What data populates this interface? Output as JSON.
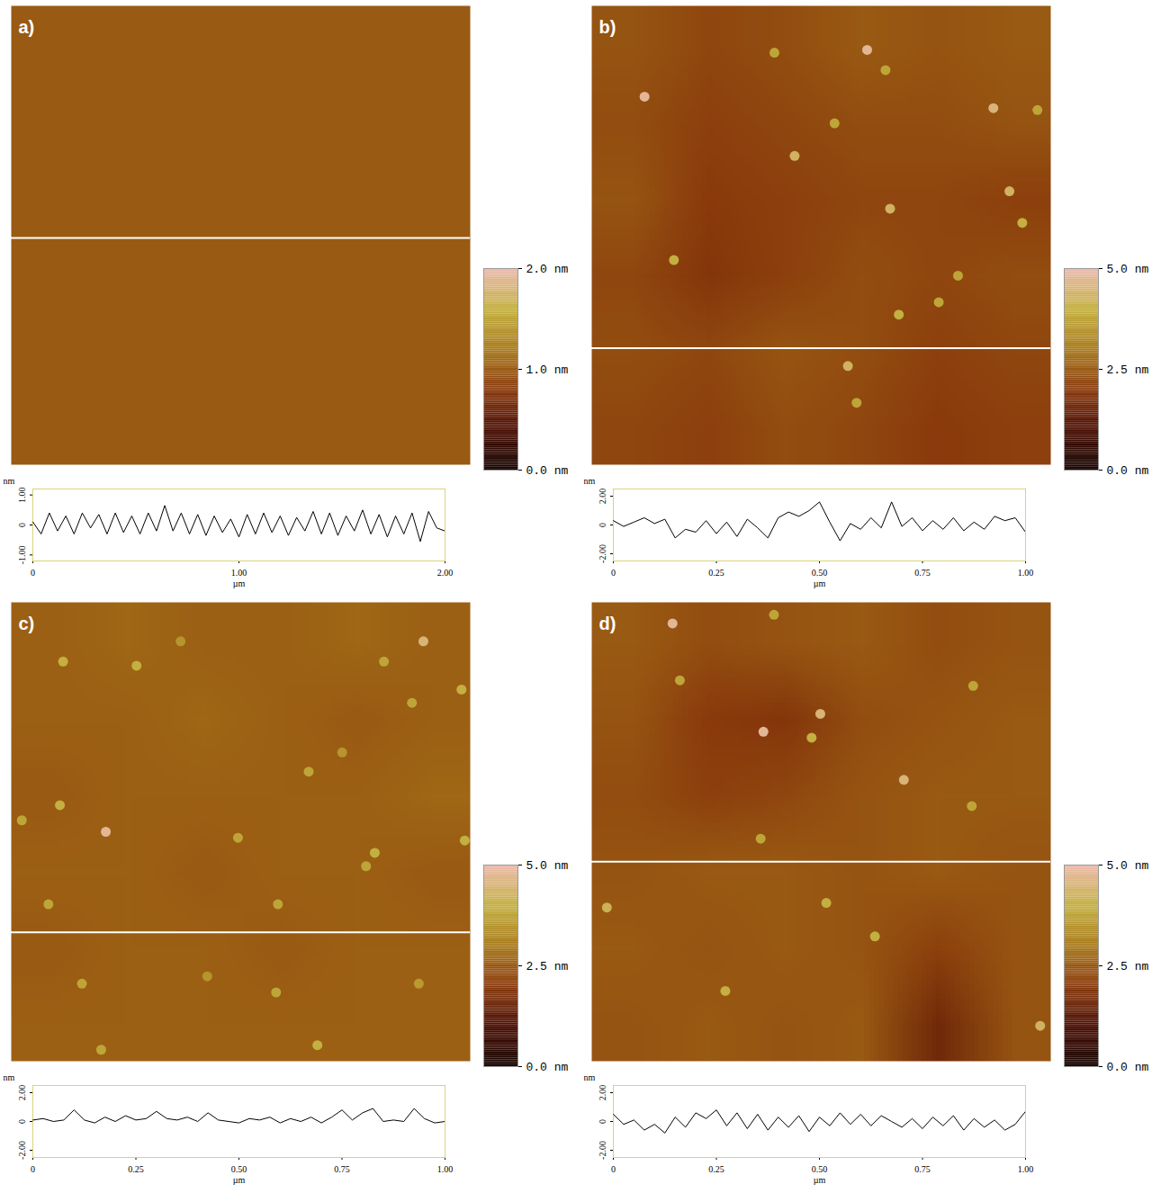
{
  "chart_data": [
    {
      "title": "a)",
      "image": {
        "type": "heatmap",
        "tick_labels": false,
        "xlim": [
          0,
          2
        ],
        "ylim": [
          0,
          2
        ],
        "cells": [
          [
            1.0,
            1.0,
            1.0,
            1.0,
            1.0,
            1.0
          ],
          [
            1.0,
            1.0,
            1.0,
            1.0,
            1.0,
            1.0
          ],
          [
            1.0,
            1.0,
            1.0,
            1.0,
            1.0,
            1.0
          ],
          [
            1.0,
            1.0,
            1.0,
            1.0,
            1.0,
            1.0
          ],
          [
            1.0,
            1.0,
            1.0,
            1.0,
            1.0,
            1.0
          ],
          [
            1.0,
            1.0,
            1.0,
            1.0,
            1.0,
            1.0
          ]
        ],
        "profile_y": 1.012
      },
      "colorbar": {
        "range": [
          0,
          2
        ],
        "ticks": [
          {
            "value": 0,
            "label": "0.0 nm"
          },
          {
            "value": 1,
            "label": "1.0 nm"
          },
          {
            "value": 2,
            "label": "2.0 nm"
          }
        ]
      },
      "profile": {
        "type": "line",
        "color": "#000000",
        "x_label": "µm",
        "y_label": "nm",
        "xlim": [
          0,
          2
        ],
        "ylim": [
          -1.2,
          1.2
        ],
        "xticks": [
          0,
          {
            "value": 1,
            "label": "1.00"
          },
          {
            "value": 2,
            "label": "2.00"
          }
        ],
        "yticks": [
          {
            "value": -1,
            "label": "-1.00"
          },
          0,
          {
            "value": 1,
            "label": "1.00"
          }
        ],
        "x": [
          0,
          0.04,
          0.08,
          0.12,
          0.16,
          0.2,
          0.24,
          0.28,
          0.32,
          0.36,
          0.4,
          0.44,
          0.48,
          0.52,
          0.56,
          0.6,
          0.64,
          0.68,
          0.72,
          0.76,
          0.8,
          0.84,
          0.88,
          0.92,
          0.96,
          1,
          1.04,
          1.08,
          1.12,
          1.16,
          1.2,
          1.24,
          1.28,
          1.32,
          1.36,
          1.4,
          1.44,
          1.48,
          1.52,
          1.56,
          1.6,
          1.64,
          1.68,
          1.72,
          1.76,
          1.8,
          1.84,
          1.88,
          1.92,
          1.96,
          2
        ],
        "values": [
          0.1,
          -0.3,
          0.4,
          -0.2,
          0.3,
          -0.3,
          0.4,
          -0.1,
          0.35,
          -0.3,
          0.4,
          -0.25,
          0.3,
          -0.3,
          0.4,
          -0.2,
          0.65,
          -0.2,
          0.4,
          -0.3,
          0.35,
          -0.35,
          0.3,
          -0.25,
          0.2,
          -0.4,
          0.35,
          -0.3,
          0.4,
          -0.25,
          0.3,
          -0.35,
          0.25,
          -0.2,
          0.45,
          -0.3,
          0.4,
          -0.35,
          0.3,
          -0.2,
          0.5,
          -0.3,
          0.35,
          -0.4,
          0.3,
          -0.3,
          0.4,
          -0.55,
          0.45,
          -0.1,
          -0.2
        ]
      }
    },
    {
      "title": "b)",
      "image": {
        "type": "heatmap",
        "tick_labels": false,
        "xlim": [
          0,
          1
        ],
        "ylim": [
          0,
          1
        ],
        "cells": [
          [
            2.4,
            2.2,
            2.3,
            2.5,
            2.4,
            2.5
          ],
          [
            2.3,
            2.1,
            2.2,
            2.3,
            2.3,
            2.4
          ],
          [
            2.4,
            2.0,
            2.1,
            2.2,
            2.2,
            2.1
          ],
          [
            2.2,
            1.9,
            2.1,
            2.3,
            2.2,
            2.3
          ],
          [
            2.3,
            2.2,
            2.4,
            2.3,
            2.1,
            2.2
          ],
          [
            2.2,
            2.1,
            2.3,
            2.2,
            2.0,
            2.1
          ]
        ],
        "particles": {
          "x": [
            0.115,
            0.6,
            0.875,
            0.442,
            0.65,
            0.91,
            0.938,
            0.179,
            0.669,
            0.756,
            0.558,
            0.798,
            0.971,
            0.398,
            0.64,
            0.529,
            0.577
          ],
          "y": [
            0.198,
            0.096,
            0.223,
            0.327,
            0.442,
            0.404,
            0.473,
            0.554,
            0.673,
            0.646,
            0.785,
            0.588,
            0.227,
            0.102,
            0.14,
            0.256,
            0.865
          ],
          "values": [
            4.8,
            4.8,
            4.5,
            4.3,
            4.3,
            4.3,
            4.0,
            4.0,
            4.0,
            3.8,
            4.3,
            3.8,
            3.8,
            3.8,
            3.8,
            3.8,
            3.8
          ]
        },
        "profile_y": 0.746
      },
      "colorbar": {
        "range": [
          0,
          5
        ],
        "ticks": [
          {
            "value": 0,
            "label": "0.0 nm"
          },
          {
            "value": 2.5,
            "label": "2.5 nm"
          },
          {
            "value": 5,
            "label": "5.0 nm"
          }
        ]
      },
      "profile": {
        "type": "line",
        "color": "#000000",
        "x_label": "µm",
        "y_label": "nm",
        "xlim": [
          0,
          1
        ],
        "ylim": [
          -2.5,
          2.5
        ],
        "xticks": [
          0,
          0.25,
          {
            "value": 0.5,
            "label": "0.50"
          },
          0.75,
          {
            "value": 1,
            "label": "1.00"
          }
        ],
        "yticks": [
          {
            "value": -2,
            "label": "-2.00"
          },
          0,
          {
            "value": 2,
            "label": "2.00"
          }
        ],
        "x": [
          0,
          0.025,
          0.05,
          0.075,
          0.1,
          0.125,
          0.15,
          0.175,
          0.2,
          0.225,
          0.25,
          0.275,
          0.3,
          0.325,
          0.35,
          0.375,
          0.4,
          0.425,
          0.45,
          0.475,
          0.5,
          0.525,
          0.55,
          0.575,
          0.6,
          0.625,
          0.65,
          0.675,
          0.7,
          0.725,
          0.75,
          0.775,
          0.8,
          0.825,
          0.85,
          0.875,
          0.9,
          0.925,
          0.95,
          0.975,
          1
        ],
        "values": [
          0.3,
          -0.1,
          0.2,
          0.5,
          0.1,
          0.4,
          -0.9,
          -0.3,
          -0.5,
          0.3,
          -0.6,
          0.2,
          -0.8,
          0.4,
          -0.2,
          -0.9,
          0.5,
          0.9,
          0.6,
          1.0,
          1.6,
          0.2,
          -1.1,
          0.1,
          -0.3,
          0.5,
          -0.2,
          1.6,
          -0.1,
          0.5,
          -0.4,
          0.3,
          -0.3,
          0.5,
          -0.4,
          0.2,
          -0.3,
          0.6,
          0.3,
          0.5,
          -0.5
        ]
      }
    },
    {
      "title": "c)",
      "image": {
        "type": "heatmap",
        "tick_labels": false,
        "xlim": [
          0,
          1
        ],
        "ylim": [
          0,
          1
        ],
        "cells": [
          [
            2.6,
            2.7,
            2.6,
            2.6,
            2.7,
            2.6
          ],
          [
            2.6,
            2.6,
            2.7,
            2.6,
            2.5,
            2.6
          ],
          [
            2.5,
            2.6,
            2.6,
            2.6,
            2.6,
            2.7
          ],
          [
            2.6,
            2.6,
            2.5,
            2.6,
            2.6,
            2.5
          ],
          [
            2.5,
            2.6,
            2.6,
            2.5,
            2.6,
            2.6
          ],
          [
            2.6,
            2.6,
            2.6,
            2.6,
            2.6,
            2.6
          ]
        ],
        "particles": {
          "x": [
            0.206,
            0.898,
            0.113,
            0.273,
            0.981,
            0.873,
            0.106,
            0.988,
            0.494,
            0.792,
            0.773,
            0.648,
            0.581,
            0.154,
            0.577,
            0.667,
            0.196,
            0.427,
            0.812,
            0.369,
            0.721,
            0.023,
            0.081,
            0.888
          ],
          "y": [
            0.5,
            0.085,
            0.129,
            0.138,
            0.19,
            0.219,
            0.442,
            0.519,
            0.513,
            0.546,
            0.575,
            0.369,
            0.658,
            0.831,
            0.85,
            0.965,
            0.975,
            0.815,
            0.129,
            0.085,
            0.327,
            0.475,
            0.658,
            0.831
          ],
          "values": [
            4.8,
            4.5,
            4.0,
            4.0,
            4.0,
            3.8,
            4.0,
            4.0,
            3.8,
            4.0,
            3.8,
            3.8,
            3.8,
            3.8,
            3.8,
            4.0,
            3.8,
            3.5,
            3.8,
            3.5,
            3.5,
            3.8,
            3.8,
            3.6
          ]
        },
        "profile_y": 0.719
      },
      "colorbar": {
        "range": [
          0,
          5
        ],
        "ticks": [
          {
            "value": 0,
            "label": "0.0 nm"
          },
          {
            "value": 2.5,
            "label": "2.5 nm"
          },
          {
            "value": 5,
            "label": "5.0 nm"
          }
        ]
      },
      "profile": {
        "type": "line",
        "color": "#000000",
        "x_label": "µm",
        "y_label": "nm",
        "xlim": [
          0,
          1
        ],
        "ylim": [
          -2.5,
          2.5
        ],
        "xticks": [
          0,
          0.25,
          {
            "value": 0.5,
            "label": "0.50"
          },
          0.75,
          {
            "value": 1,
            "label": "1.00"
          }
        ],
        "yticks": [
          {
            "value": -2,
            "label": "-2.00"
          },
          0,
          {
            "value": 2,
            "label": "2.00"
          }
        ],
        "x": [
          0,
          0.025,
          0.05,
          0.075,
          0.1,
          0.125,
          0.15,
          0.175,
          0.2,
          0.225,
          0.25,
          0.275,
          0.3,
          0.325,
          0.35,
          0.375,
          0.4,
          0.425,
          0.45,
          0.475,
          0.5,
          0.525,
          0.55,
          0.575,
          0.6,
          0.625,
          0.65,
          0.675,
          0.7,
          0.725,
          0.75,
          0.775,
          0.8,
          0.825,
          0.85,
          0.875,
          0.9,
          0.925,
          0.95,
          0.975,
          1
        ],
        "values": [
          0.1,
          0.2,
          0.0,
          0.1,
          0.8,
          0.1,
          -0.1,
          0.3,
          0.0,
          0.4,
          0.1,
          0.2,
          0.7,
          0.2,
          0.1,
          0.3,
          0.0,
          0.6,
          0.1,
          0.0,
          -0.1,
          0.2,
          0.1,
          0.3,
          -0.1,
          0.2,
          0.0,
          0.3,
          -0.1,
          0.3,
          0.8,
          0.1,
          0.6,
          0.9,
          0.0,
          0.1,
          0.0,
          0.9,
          0.2,
          -0.1,
          0.0
        ]
      }
    },
    {
      "title": "d)",
      "image": {
        "type": "heatmap",
        "tick_labels": false,
        "xlim": [
          0,
          1
        ],
        "ylim": [
          0,
          1
        ],
        "cells": [
          [
            2.5,
            2.3,
            2.4,
            2.5,
            2.3,
            2.4
          ],
          [
            2.4,
            2.0,
            1.9,
            2.3,
            2.4,
            2.5
          ],
          [
            2.3,
            2.1,
            2.2,
            2.4,
            2.5,
            2.5
          ],
          [
            2.4,
            2.5,
            2.5,
            2.4,
            2.5,
            2.4
          ],
          [
            2.5,
            2.4,
            2.5,
            2.4,
            2.1,
            2.4
          ],
          [
            2.4,
            2.5,
            2.4,
            2.5,
            1.6,
            2.4
          ]
        ],
        "particles": {
          "x": [
            0.176,
            0.374,
            0.498,
            0.68,
            0.479,
            0.033,
            0.617,
            0.977,
            0.291,
            0.511,
            0.828,
            0.831,
            0.397,
            0.368,
            0.192
          ],
          "y": [
            0.046,
            0.282,
            0.243,
            0.387,
            0.295,
            0.665,
            0.728,
            0.923,
            0.847,
            0.655,
            0.444,
            0.182,
            0.027,
            0.515,
            0.17
          ],
          "values": [
            4.8,
            4.8,
            4.5,
            4.5,
            4.0,
            4.2,
            4.0,
            4.3,
            4.0,
            4.0,
            3.8,
            3.8,
            3.8,
            3.8,
            3.8
          ]
        },
        "profile_y": 0.565
      },
      "colorbar": {
        "range": [
          0,
          5
        ],
        "ticks": [
          {
            "value": 0,
            "label": "0.0 nm"
          },
          {
            "value": 2.5,
            "label": "2.5 nm"
          },
          {
            "value": 5,
            "label": "5.0 nm"
          }
        ]
      },
      "profile": {
        "type": "line",
        "color": "#000000",
        "x_label": "µm",
        "y_label": "nm",
        "xlim": [
          0,
          1
        ],
        "ylim": [
          -2.5,
          2.5
        ],
        "xticks": [
          0,
          0.25,
          {
            "value": 0.5,
            "label": "0.50"
          },
          0.75,
          {
            "value": 1,
            "label": "1.00"
          }
        ],
        "yticks": [
          {
            "value": -2,
            "label": "-2.00"
          },
          0,
          {
            "value": 2,
            "label": "2.00"
          }
        ],
        "x": [
          0,
          0.025,
          0.05,
          0.075,
          0.1,
          0.125,
          0.15,
          0.175,
          0.2,
          0.225,
          0.25,
          0.275,
          0.3,
          0.325,
          0.35,
          0.375,
          0.4,
          0.425,
          0.45,
          0.475,
          0.5,
          0.525,
          0.55,
          0.575,
          0.6,
          0.625,
          0.65,
          0.675,
          0.7,
          0.725,
          0.75,
          0.775,
          0.8,
          0.825,
          0.85,
          0.875,
          0.9,
          0.925,
          0.95,
          0.975,
          1
        ],
        "values": [
          0.5,
          -0.2,
          0.1,
          -0.6,
          -0.2,
          -0.8,
          0.3,
          -0.4,
          0.6,
          0.2,
          0.8,
          -0.3,
          0.6,
          -0.5,
          0.5,
          -0.6,
          0.3,
          -0.4,
          0.4,
          -0.7,
          0.3,
          -0.3,
          0.6,
          -0.2,
          0.5,
          -0.3,
          0.4,
          0.0,
          -0.4,
          0.2,
          -0.5,
          0.3,
          -0.3,
          0.4,
          -0.6,
          0.2,
          -0.4,
          0.1,
          -0.6,
          -0.2,
          0.7
        ]
      }
    }
  ]
}
